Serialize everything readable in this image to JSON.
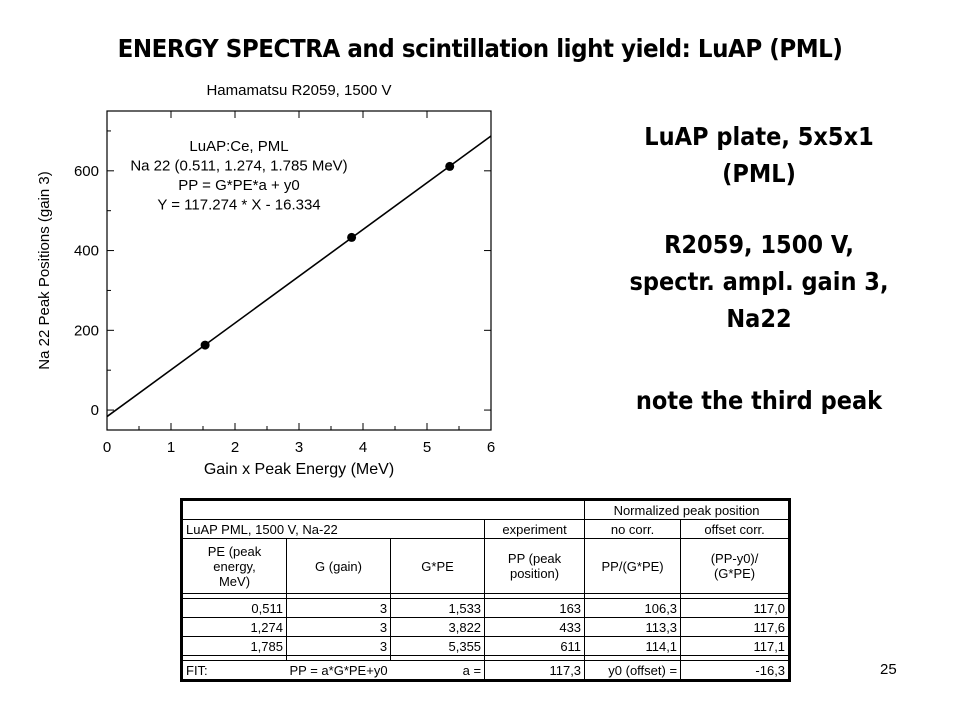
{
  "slide": {
    "title": "ENERGY SPECTRA and scintillation light yield: LuAP (PML)",
    "page_number": "25"
  },
  "notes": {
    "lines1": [
      "LuAP plate, 5x5x1",
      "(PML)"
    ],
    "lines2": [
      "R2059, 1500 V,",
      "spectr. ampl. gain 3,",
      "Na22"
    ],
    "lines3": [
      "note the third peak"
    ]
  },
  "chart_data": {
    "type": "scatter",
    "title": "Hamamatsu R2059, 1500 V",
    "xlabel": "Gain x Peak Energy (MeV)",
    "ylabel": "Na 22 Peak Positions (gain 3)",
    "xlim": [
      0,
      6
    ],
    "ylim": [
      -50,
      750
    ],
    "x_ticks": [
      "0",
      "1",
      "2",
      "3",
      "4",
      "5",
      "6"
    ],
    "y_ticks": [
      "0",
      "200",
      "400",
      "600"
    ],
    "points": [
      {
        "x": 1.533,
        "y": 163
      },
      {
        "x": 3.822,
        "y": 433
      },
      {
        "x": 5.355,
        "y": 611
      }
    ],
    "fit_line": {
      "slope": 117.274,
      "intercept": -16.334
    },
    "annotation": [
      "LuAP:Ce, PML",
      "Na 22 (0.511, 1.274, 1.785 MeV)",
      "PP = G*PE*a + y0",
      "Y = 117.274 * X - 16.334"
    ]
  },
  "table": {
    "norm_header": "Normalized peak position",
    "row2": [
      "LuAP PML, 1500 V, Na-22",
      "experiment",
      "no corr.",
      "offset corr."
    ],
    "headers": [
      [
        "PE (peak",
        "energy,",
        "MeV)"
      ],
      [
        "G (gain)"
      ],
      [
        "G*PE"
      ],
      [
        "PP (peak",
        "position)"
      ],
      [
        "PP/(G*PE)"
      ],
      [
        "(PP-y0)/",
        "(G*PE)"
      ]
    ],
    "rows": [
      [
        "0,511",
        "3",
        "1,533",
        "163",
        "106,3",
        "117,0"
      ],
      [
        "1,274",
        "3",
        "3,822",
        "433",
        "113,3",
        "117,6"
      ],
      [
        "1,785",
        "3",
        "5,355",
        "611",
        "114,1",
        "117,1"
      ]
    ],
    "fit": [
      "FIT:",
      "PP = a*G*PE+y0",
      "a =",
      "117,3",
      "y0 (offset) =",
      "-16,3"
    ]
  }
}
